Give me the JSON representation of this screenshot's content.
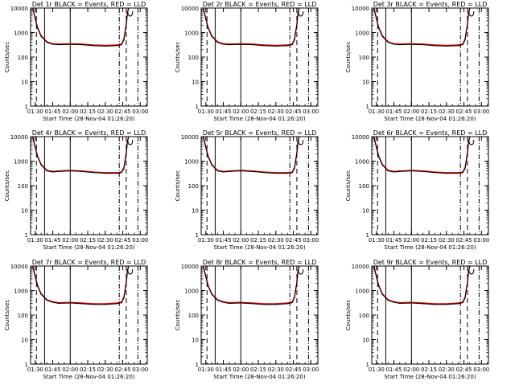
{
  "colors": {
    "events": "#000000",
    "lld": "#e00000",
    "background": "#ffffff"
  },
  "shared": {
    "ylabel": "Counts/sec",
    "xlabel": "Start Time (28-Nov-04 01:26:20)",
    "x_ticks": [
      "01:30",
      "01:45",
      "02:00",
      "02:15",
      "02:30",
      "02:45",
      "03:00"
    ],
    "y_ticks": [
      "1",
      "10",
      "100",
      "1000",
      "10000"
    ]
  },
  "chart_data": [
    {
      "type": "line",
      "title": "Det 1r BLACK = Events, RED = LLD",
      "xlabel": "Start Time (28-Nov-04 01:26:20)",
      "ylabel": "Counts/sec",
      "y_scale": "log",
      "ylim": [
        1,
        10000
      ],
      "xlim": [
        "01:26",
        "03:06"
      ],
      "x": [
        "01:28",
        "01:30",
        "01:32",
        "01:35",
        "01:40",
        "01:45",
        "01:50",
        "02:00",
        "02:10",
        "02:20",
        "02:30",
        "02:40",
        "02:44",
        "02:46",
        "02:48",
        "02:49",
        "02:50"
      ],
      "series": [
        {
          "name": "BLACK = Events",
          "values": [
            9000,
            3500,
            1500,
            700,
            400,
            330,
            320,
            330,
            320,
            290,
            280,
            290,
            320,
            500,
            2000,
            6000,
            10000
          ]
        },
        {
          "name": "RED = LLD",
          "values": [
            9500,
            3800,
            1600,
            750,
            420,
            350,
            340,
            350,
            340,
            310,
            300,
            310,
            340,
            550,
            2200,
            6500,
            10000
          ]
        }
      ],
      "vlines": {
        "dashed": [
          "01:31",
          "02:48"
        ],
        "dash_dot": [
          "02:42",
          "02:58"
        ],
        "solid": [
          "01:38",
          "02:00"
        ]
      }
    },
    {
      "type": "line",
      "title": "Det 2r BLACK = Events, RED = LLD",
      "xlabel": "Start Time (28-Nov-04 01:26:20)",
      "ylabel": "Counts/sec",
      "y_scale": "log",
      "ylim": [
        1,
        10000
      ],
      "xlim": [
        "01:26",
        "03:06"
      ],
      "x": [
        "01:28",
        "01:30",
        "01:32",
        "01:35",
        "01:40",
        "01:45",
        "01:50",
        "02:00",
        "02:10",
        "02:20",
        "02:30",
        "02:40",
        "02:44",
        "02:46",
        "02:48",
        "02:49",
        "02:50"
      ],
      "series": [
        {
          "name": "BLACK = Events",
          "values": [
            9000,
            3500,
            1500,
            700,
            400,
            330,
            320,
            330,
            320,
            290,
            280,
            290,
            320,
            500,
            2000,
            6000,
            10000
          ]
        },
        {
          "name": "RED = LLD",
          "values": [
            9500,
            3800,
            1600,
            750,
            420,
            350,
            340,
            350,
            340,
            310,
            300,
            310,
            340,
            550,
            2200,
            6500,
            10000
          ]
        }
      ],
      "vlines": {
        "dashed": [
          "01:31",
          "02:48"
        ],
        "dash_dot": [
          "02:42",
          "02:58"
        ],
        "solid": [
          "01:38",
          "02:00"
        ]
      }
    },
    {
      "type": "line",
      "title": "Det 3r BLACK = Events, RED = LLD",
      "xlabel": "Start Time (28-Nov-04 01:26:20)",
      "ylabel": "Counts/sec",
      "y_scale": "log",
      "ylim": [
        1,
        10000
      ],
      "xlim": [
        "01:26",
        "03:06"
      ],
      "x": [
        "01:28",
        "01:30",
        "01:32",
        "01:35",
        "01:40",
        "01:45",
        "01:50",
        "02:00",
        "02:10",
        "02:20",
        "02:30",
        "02:40",
        "02:44",
        "02:46",
        "02:48",
        "02:49",
        "02:50"
      ],
      "series": [
        {
          "name": "BLACK = Events",
          "values": [
            9000,
            3500,
            1500,
            700,
            400,
            330,
            320,
            330,
            320,
            290,
            280,
            290,
            320,
            500,
            2000,
            6000,
            10000
          ]
        },
        {
          "name": "RED = LLD",
          "values": [
            9500,
            3800,
            1600,
            750,
            420,
            350,
            340,
            350,
            340,
            310,
            300,
            310,
            340,
            550,
            2200,
            6500,
            10000
          ]
        }
      ],
      "vlines": {
        "dashed": [
          "01:31",
          "02:48"
        ],
        "dash_dot": [
          "02:42",
          "02:58"
        ],
        "solid": [
          "01:38",
          "02:00"
        ]
      }
    },
    {
      "type": "line",
      "title": "Det 4r BLACK = Events, RED = LLD",
      "xlabel": "Start Time (28-Nov-04 01:26:20)",
      "ylabel": "Counts/sec",
      "y_scale": "log",
      "ylim": [
        1,
        10000
      ],
      "xlim": [
        "01:26",
        "03:06"
      ],
      "x": [
        "01:28",
        "01:30",
        "01:32",
        "01:35",
        "01:40",
        "01:45",
        "01:50",
        "02:00",
        "02:10",
        "02:20",
        "02:30",
        "02:40",
        "02:44",
        "02:46",
        "02:48",
        "02:49",
        "02:50"
      ],
      "series": [
        {
          "name": "BLACK = Events",
          "values": [
            9000,
            3500,
            1500,
            700,
            400,
            360,
            380,
            400,
            380,
            340,
            320,
            320,
            340,
            500,
            2000,
            6000,
            10000
          ]
        },
        {
          "name": "RED = LLD",
          "values": [
            9500,
            3800,
            1600,
            750,
            420,
            380,
            400,
            420,
            400,
            360,
            340,
            340,
            360,
            550,
            2200,
            6500,
            10000
          ]
        }
      ],
      "vlines": {
        "dashed": [
          "01:31",
          "02:48"
        ],
        "dash_dot": [
          "02:42",
          "02:58"
        ],
        "solid": [
          "01:38",
          "02:00"
        ]
      }
    },
    {
      "type": "line",
      "title": "Det 5r BLACK = Events, RED = LLD",
      "xlabel": "Start Time (28-Nov-04 01:26:20)",
      "ylabel": "Counts/sec",
      "y_scale": "log",
      "ylim": [
        1,
        10000
      ],
      "xlim": [
        "01:26",
        "03:06"
      ],
      "x": [
        "01:28",
        "01:30",
        "01:32",
        "01:35",
        "01:40",
        "01:45",
        "01:50",
        "02:00",
        "02:10",
        "02:20",
        "02:30",
        "02:40",
        "02:44",
        "02:46",
        "02:48",
        "02:49",
        "02:50"
      ],
      "series": [
        {
          "name": "BLACK = Events",
          "values": [
            9000,
            3500,
            1500,
            700,
            400,
            360,
            380,
            400,
            380,
            340,
            320,
            320,
            340,
            500,
            2000,
            6000,
            10000
          ]
        },
        {
          "name": "RED = LLD",
          "values": [
            9500,
            3800,
            1600,
            750,
            420,
            380,
            400,
            420,
            400,
            360,
            340,
            340,
            360,
            550,
            2200,
            6500,
            10000
          ]
        }
      ],
      "vlines": {
        "dashed": [
          "01:31",
          "02:48"
        ],
        "dash_dot": [
          "02:42",
          "02:58"
        ],
        "solid": [
          "01:38",
          "02:00"
        ]
      }
    },
    {
      "type": "line",
      "title": "Det 6r BLACK = Events, RED = LLD",
      "xlabel": "Start Time (28-Nov-04 01:26:20)",
      "ylabel": "Counts/sec",
      "y_scale": "log",
      "ylim": [
        1,
        10000
      ],
      "xlim": [
        "01:26",
        "03:06"
      ],
      "x": [
        "01:28",
        "01:30",
        "01:32",
        "01:35",
        "01:40",
        "01:45",
        "01:50",
        "02:00",
        "02:10",
        "02:20",
        "02:30",
        "02:40",
        "02:44",
        "02:46",
        "02:48",
        "02:49",
        "02:50"
      ],
      "series": [
        {
          "name": "BLACK = Events",
          "values": [
            9000,
            3500,
            1500,
            700,
            400,
            360,
            380,
            400,
            380,
            340,
            320,
            320,
            340,
            500,
            2000,
            6000,
            10000
          ]
        },
        {
          "name": "RED = LLD",
          "values": [
            9500,
            3800,
            1600,
            750,
            420,
            380,
            400,
            420,
            400,
            360,
            340,
            340,
            360,
            550,
            2200,
            6500,
            10000
          ]
        }
      ],
      "vlines": {
        "dashed": [
          "01:31",
          "02:48"
        ],
        "dash_dot": [
          "02:42",
          "02:58"
        ],
        "solid": [
          "01:38",
          "02:00"
        ]
      }
    },
    {
      "type": "line",
      "title": "Det 7r BLACK = Events, RED = LLD",
      "xlabel": "Start Time (28-Nov-04 01:26:20)",
      "ylabel": "Counts/sec",
      "y_scale": "log",
      "ylim": [
        1,
        10000
      ],
      "xlim": [
        "01:26",
        "03:06"
      ],
      "x": [
        "01:28",
        "01:30",
        "01:32",
        "01:35",
        "01:40",
        "01:45",
        "01:50",
        "02:00",
        "02:10",
        "02:20",
        "02:30",
        "02:40",
        "02:44",
        "02:46",
        "02:48",
        "02:49",
        "02:50"
      ],
      "series": [
        {
          "name": "BLACK = Events",
          "values": [
            9000,
            3500,
            1500,
            700,
            400,
            330,
            300,
            310,
            290,
            270,
            270,
            290,
            320,
            500,
            2000,
            6000,
            10000
          ]
        },
        {
          "name": "RED = LLD",
          "values": [
            9500,
            3800,
            1600,
            750,
            420,
            350,
            320,
            330,
            310,
            290,
            290,
            310,
            340,
            550,
            2200,
            6500,
            10000
          ]
        }
      ],
      "vlines": {
        "dashed": [
          "01:31",
          "02:48"
        ],
        "dash_dot": [
          "02:42",
          "02:58"
        ],
        "solid": [
          "01:38",
          "02:00"
        ]
      }
    },
    {
      "type": "line",
      "title": "Det 8r BLACK = Events, RED = LLD",
      "xlabel": "Start Time (28-Nov-04 01:26:20)",
      "ylabel": "Counts/sec",
      "y_scale": "log",
      "ylim": [
        1,
        10000
      ],
      "xlim": [
        "01:26",
        "03:06"
      ],
      "x": [
        "01:28",
        "01:30",
        "01:32",
        "01:35",
        "01:40",
        "01:45",
        "01:50",
        "02:00",
        "02:10",
        "02:20",
        "02:30",
        "02:40",
        "02:44",
        "02:46",
        "02:48",
        "02:49",
        "02:50"
      ],
      "series": [
        {
          "name": "BLACK = Events",
          "values": [
            9000,
            3500,
            1500,
            700,
            400,
            330,
            300,
            310,
            290,
            270,
            270,
            290,
            320,
            500,
            2000,
            6000,
            10000
          ]
        },
        {
          "name": "RED = LLD",
          "values": [
            9500,
            3800,
            1600,
            750,
            420,
            350,
            320,
            330,
            310,
            290,
            290,
            310,
            340,
            550,
            2200,
            6500,
            10000
          ]
        }
      ],
      "vlines": {
        "dashed": [
          "01:31",
          "02:48"
        ],
        "dash_dot": [
          "02:42",
          "02:58"
        ],
        "solid": [
          "01:38",
          "02:00"
        ]
      }
    },
    {
      "type": "line",
      "title": "Det 9r BLACK = Events, RED = LLD",
      "xlabel": "Start Time (28-Nov-04 01:26:20)",
      "ylabel": "Counts/sec",
      "y_scale": "log",
      "ylim": [
        1,
        10000
      ],
      "xlim": [
        "01:26",
        "03:06"
      ],
      "x": [
        "01:28",
        "01:30",
        "01:32",
        "01:35",
        "01:40",
        "01:45",
        "01:50",
        "02:00",
        "02:10",
        "02:20",
        "02:30",
        "02:40",
        "02:44",
        "02:46",
        "02:48",
        "02:49",
        "02:50"
      ],
      "series": [
        {
          "name": "BLACK = Events",
          "values": [
            9000,
            3500,
            1500,
            700,
            400,
            330,
            300,
            310,
            290,
            270,
            270,
            290,
            320,
            500,
            2000,
            6000,
            10000
          ]
        },
        {
          "name": "RED = LLD",
          "values": [
            9500,
            3800,
            1600,
            750,
            420,
            350,
            320,
            330,
            310,
            290,
            290,
            310,
            340,
            550,
            2200,
            6500,
            10000
          ]
        }
      ],
      "vlines": {
        "dashed": [
          "01:31",
          "02:48"
        ],
        "dash_dot": [
          "02:42",
          "02:58"
        ],
        "solid": [
          "01:38",
          "02:00"
        ]
      }
    }
  ]
}
